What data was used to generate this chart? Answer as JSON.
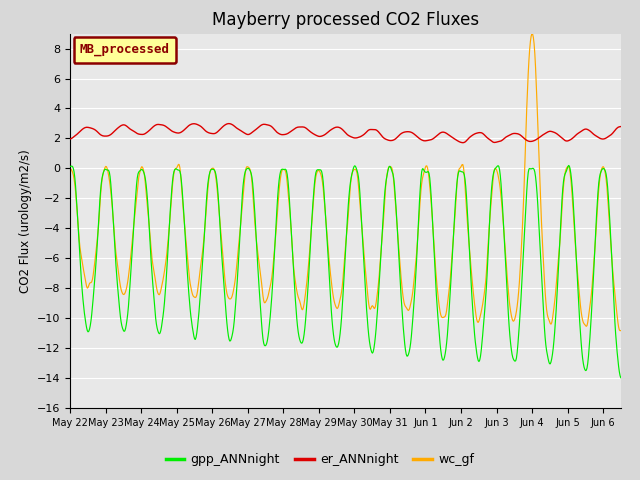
{
  "title": "Mayberry processed CO2 Fluxes",
  "ylabel": "CO2 Flux (urology/m2/s)",
  "ylim": [
    -16,
    9
  ],
  "yticks": [
    -16,
    -14,
    -12,
    -10,
    -8,
    -6,
    -4,
    -2,
    0,
    2,
    4,
    6,
    8
  ],
  "legend_label": "MB_processed",
  "legend_bg": "#ffff99",
  "legend_border": "#8b0000",
  "line_green": "#00ee00",
  "line_red": "#dd0000",
  "line_orange": "#ffaa00",
  "plot_bg": "#e8e8e8",
  "fig_bg": "#d8d8d8",
  "n_points": 750,
  "days": 15.5,
  "xtick_labels": [
    "May 22",
    "May 23",
    "May 24",
    "May 25",
    "May 26",
    "May 27",
    "May 28",
    "May 29",
    "May 30",
    "May 31",
    "Jun 1",
    "Jun 2",
    "Jun 3",
    "Jun 4",
    "Jun 5",
    "Jun 6"
  ],
  "legend_items": [
    "gpp_ANNnight",
    "er_ANNnight",
    "wc_gf"
  ]
}
